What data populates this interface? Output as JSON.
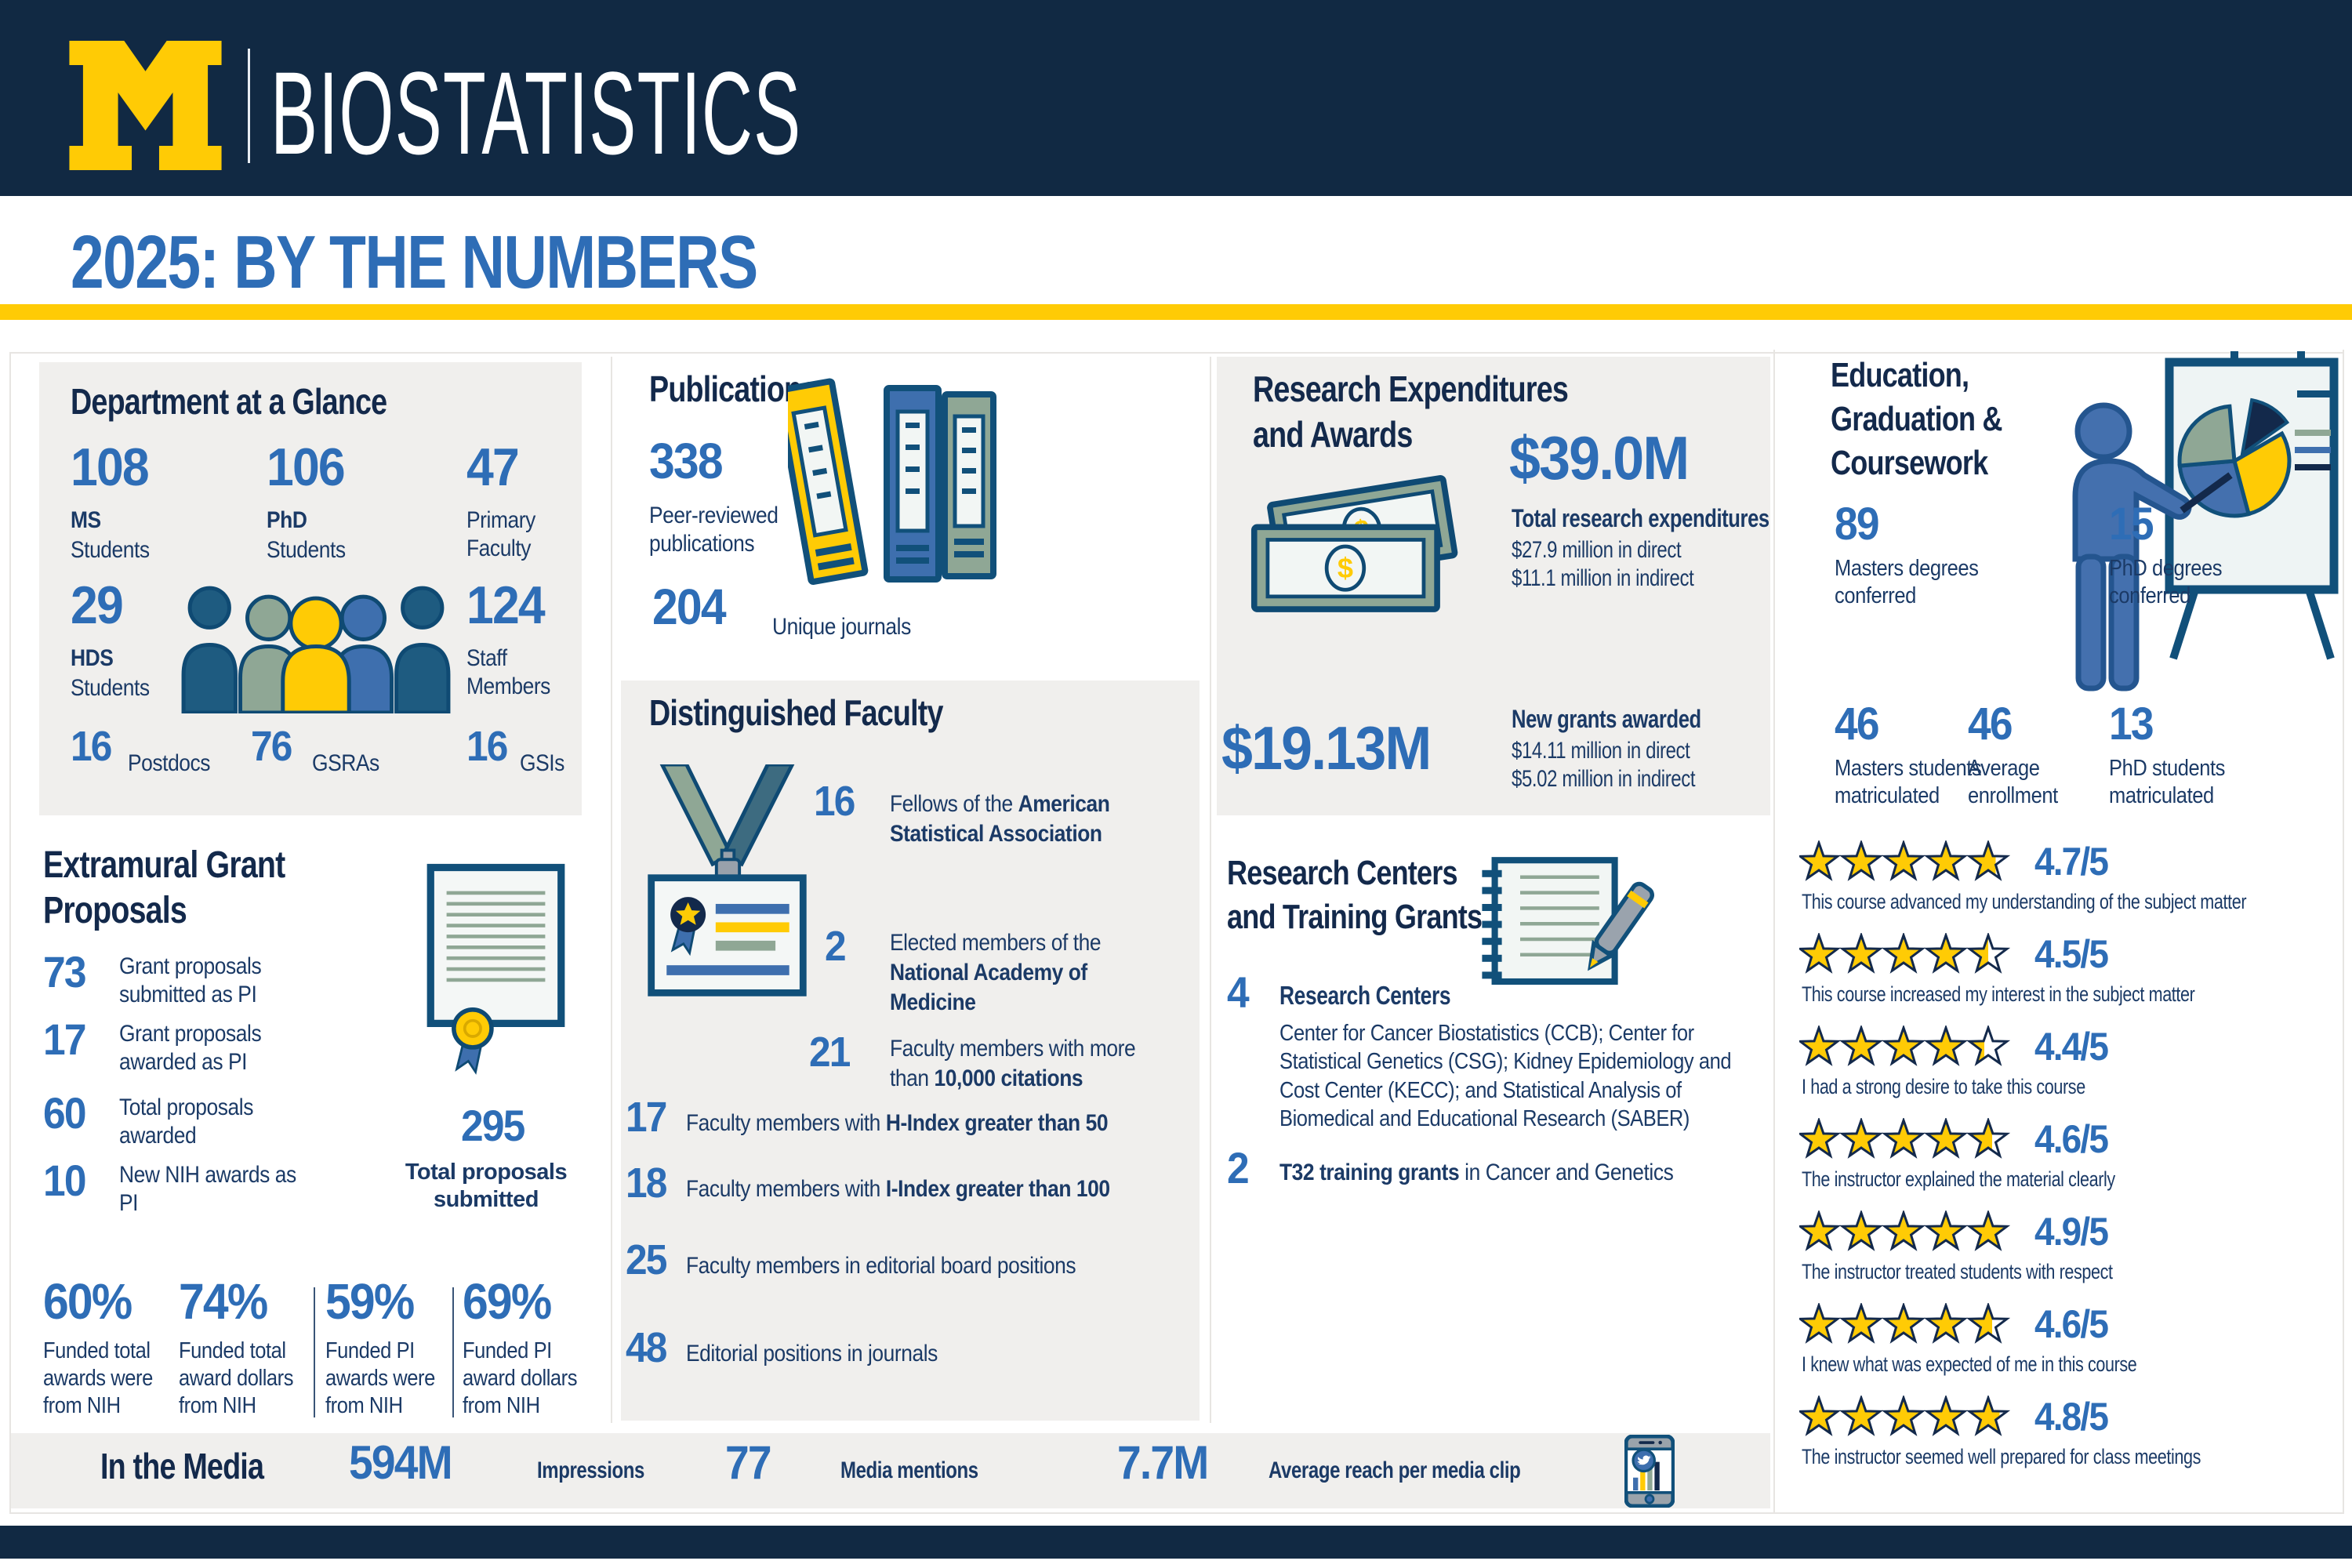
{
  "brand": {
    "logo_letter": "M",
    "name": "BIOSTATISTICS"
  },
  "page_title": "2025: BY THE NUMBERS",
  "colors": {
    "navy": "#112943",
    "maize": "#FFCB05",
    "stat_blue": "#2E6DB6",
    "card_gray": "#F0EFED",
    "sage": "#8FA795",
    "mid_blue": "#3E6FAE",
    "icon_outline": "#11507A"
  },
  "glance": {
    "title": "Department at a Glance",
    "stats": [
      {
        "value": "108",
        "bold": "MS",
        "rest": "Students"
      },
      {
        "value": "106",
        "bold": "PhD",
        "rest": "Students"
      },
      {
        "value": "47",
        "bold": "",
        "rest": "Primary Faculty"
      },
      {
        "value": "29",
        "bold": "HDS",
        "rest": "Students"
      },
      {
        "value": "124",
        "bold": "",
        "rest": "Staff Members"
      }
    ],
    "bottom": [
      {
        "value": "16",
        "label": "Postdocs"
      },
      {
        "value": "76",
        "label": "GSRAs"
      },
      {
        "value": "16",
        "label": "GSIs"
      }
    ]
  },
  "grants": {
    "title_line1": "Extramural Grant",
    "title_line2": "Proposals",
    "items": [
      {
        "value": "73",
        "label": "Grant proposals submitted as PI"
      },
      {
        "value": "17",
        "label": "Grant proposals awarded as PI"
      },
      {
        "value": "60",
        "label": "Total proposals awarded"
      },
      {
        "value": "10",
        "label": "New NIH awards as PI"
      }
    ],
    "total": {
      "value": "295",
      "label": "Total proposals submitted"
    },
    "percents": [
      {
        "value": "60%",
        "label": "Funded total awards were from NIH"
      },
      {
        "value": "74%",
        "label": "Funded total award dollars from NIH"
      },
      {
        "value": "59%",
        "label": "Funded PI awards were from NIH"
      },
      {
        "value": "69%",
        "label": "Funded PI award dollars from NIH"
      }
    ]
  },
  "publications": {
    "title": "Publications",
    "peer_value": "338",
    "peer_label": "Peer-reviewed publications",
    "journal_value": "204",
    "journal_label": "Unique journals"
  },
  "faculty": {
    "title": "Distinguished Faculty",
    "items": [
      {
        "value": "16",
        "l1_pre": "Fellows of the ",
        "l1_bold": "American",
        "l2_bold": "Statistical Association"
      },
      {
        "value": "2",
        "l1_pre": "Elected members of the",
        "l2_bold": "National Academy of",
        "l3_bold": "Medicine"
      },
      {
        "value": "21",
        "l1_pre": "Faculty members with more",
        "l2_pre": "than ",
        "l2_bold": "10,000 citations"
      },
      {
        "value": "17",
        "pre": "Faculty members with ",
        "bold": "H-Index greater than 50"
      },
      {
        "value": "18",
        "pre": "Faculty members with ",
        "bold": "I-Index greater than 100"
      },
      {
        "value": "25",
        "pre": "Faculty members in editorial board positions",
        "bold": ""
      },
      {
        "value": "48",
        "pre": "Editorial positions in journals",
        "bold": ""
      }
    ]
  },
  "expenditures": {
    "title_line1": "Research Expenditures",
    "title_line2": "and Awards",
    "total": {
      "value": "$39.0M",
      "heading": "Total research expenditures",
      "direct": "$27.9 million in direct",
      "indirect": "$11.1 million in indirect"
    },
    "new_grants": {
      "value": "$19.13M",
      "heading": "New grants awarded",
      "direct": "$14.11 million in direct",
      "indirect": "$5.02 million in indirect"
    }
  },
  "centers": {
    "title_line1": "Research Centers",
    "title_line2": "and Training Grants",
    "count_value": "4",
    "count_label": "Research Centers",
    "description": "Center for Cancer Biostatistics (CCB); Center for Statistical Genetics (CSG); Kidney Epidemiology and Cost Center (KECC); and Statistical Analysis of Biomedical and Educational Research (SABER)",
    "t32_value": "2",
    "t32_bold": "T32 training grants",
    "t32_rest": " in Cancer and Genetics"
  },
  "education": {
    "title_line1": "Education,",
    "title_line2": "Graduation &",
    "title_line3": "Coursework",
    "stats": [
      {
        "value": "89",
        "label": "Masters degrees conferred"
      },
      {
        "value": "15",
        "label": "PhD degrees conferred"
      },
      {
        "value": "46",
        "label": "Masters students matriculated"
      },
      {
        "value": "46",
        "label": "Average enrollment"
      },
      {
        "value": "13",
        "label": "PhD students matriculated"
      }
    ],
    "ratings": [
      {
        "value": 4.7,
        "score": "4.7/5",
        "caption": "This course advanced my understanding of the subject matter"
      },
      {
        "value": 4.5,
        "score": "4.5/5",
        "caption": "This course increased my interest in the subject matter"
      },
      {
        "value": 4.4,
        "score": "4.4/5",
        "caption": "I had a strong desire to take this course"
      },
      {
        "value": 4.6,
        "score": "4.6/5",
        "caption": "The instructor explained the material clearly"
      },
      {
        "value": 4.9,
        "score": "4.9/5",
        "caption": "The instructor treated students with respect"
      },
      {
        "value": 4.6,
        "score": "4.6/5",
        "caption": "I knew what was expected of me in this course"
      },
      {
        "value": 4.8,
        "score": "4.8/5",
        "caption": "The instructor seemed well prepared for class meetings"
      }
    ]
  },
  "media": {
    "title": "In the Media",
    "stats": [
      {
        "value": "594M",
        "label": "Impressions"
      },
      {
        "value": "77",
        "label": "Media mentions"
      },
      {
        "value": "7.7M",
        "label": "Average reach per media clip"
      }
    ]
  }
}
